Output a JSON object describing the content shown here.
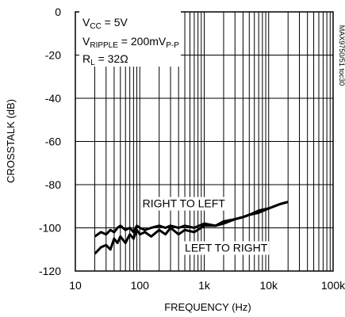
{
  "chart_data": {
    "type": "line",
    "xscale": "log",
    "xlim": [
      10,
      100000
    ],
    "ylim": [
      -120,
      0
    ],
    "grid": true,
    "xlabel": "FREQUENCY (Hz)",
    "ylabel": "CROSSTALK (dB)",
    "xticks": [
      {
        "value": 10,
        "label": "10"
      },
      {
        "value": 100,
        "label": "100"
      },
      {
        "value": 1000,
        "label": "1k"
      },
      {
        "value": 10000,
        "label": "10k"
      },
      {
        "value": 100000,
        "label": "100k"
      }
    ],
    "yticks": [
      {
        "value": 0,
        "label": "0"
      },
      {
        "value": -20,
        "label": "-20"
      },
      {
        "value": -40,
        "label": "-40"
      },
      {
        "value": -60,
        "label": "-60"
      },
      {
        "value": -80,
        "label": "-80"
      },
      {
        "value": -100,
        "label": "-100"
      },
      {
        "value": -120,
        "label": "-120"
      }
    ],
    "conditions": [
      {
        "main": "V",
        "sub": "CC",
        "rest": " = 5V"
      },
      {
        "main": "V",
        "sub": "RIPPLE",
        "rest": " = 200mV",
        "sub2": "P-P"
      },
      {
        "main": "R",
        "sub": "L",
        "rest": " = 32Ω"
      }
    ],
    "part_number": "MAX9750/51 toc30",
    "series": [
      {
        "name": "RIGHT TO LEFT",
        "label_anchor": [
          110,
          -90.5
        ],
        "x": [
          20,
          25,
          30,
          35,
          40,
          45,
          50,
          60,
          70,
          80,
          90,
          100,
          120,
          150,
          200,
          250,
          300,
          400,
          500,
          700,
          1000,
          1500,
          2000,
          3000,
          4000,
          5000,
          7000,
          10000,
          15000,
          20000
        ],
        "y": [
          -104,
          -102,
          -103,
          -101,
          -102,
          -100,
          -99,
          -101,
          -100,
          -102,
          -99,
          -100,
          -101,
          -100,
          -99,
          -100,
          -99,
          -100,
          -99,
          -100,
          -98,
          -99,
          -97,
          -96,
          -95,
          -94,
          -93,
          -91,
          -89,
          -88
        ]
      },
      {
        "name": "LEFT TO RIGHT",
        "label_anchor": [
          500,
          -111
        ],
        "x": [
          20,
          25,
          30,
          35,
          40,
          45,
          50,
          60,
          70,
          80,
          90,
          100,
          120,
          150,
          200,
          250,
          300,
          400,
          500,
          700,
          1000,
          1500,
          2000,
          3000,
          4000,
          5000,
          7000,
          10000,
          15000,
          20000
        ],
        "y": [
          -112,
          -109,
          -108,
          -110,
          -105,
          -107,
          -104,
          -107,
          -103,
          -105,
          -101,
          -103,
          -102,
          -104,
          -101,
          -103,
          -100,
          -103,
          -101,
          -102,
          -99,
          -99,
          -98,
          -96,
          -95,
          -94,
          -92,
          -91,
          -89,
          -88
        ]
      }
    ]
  }
}
